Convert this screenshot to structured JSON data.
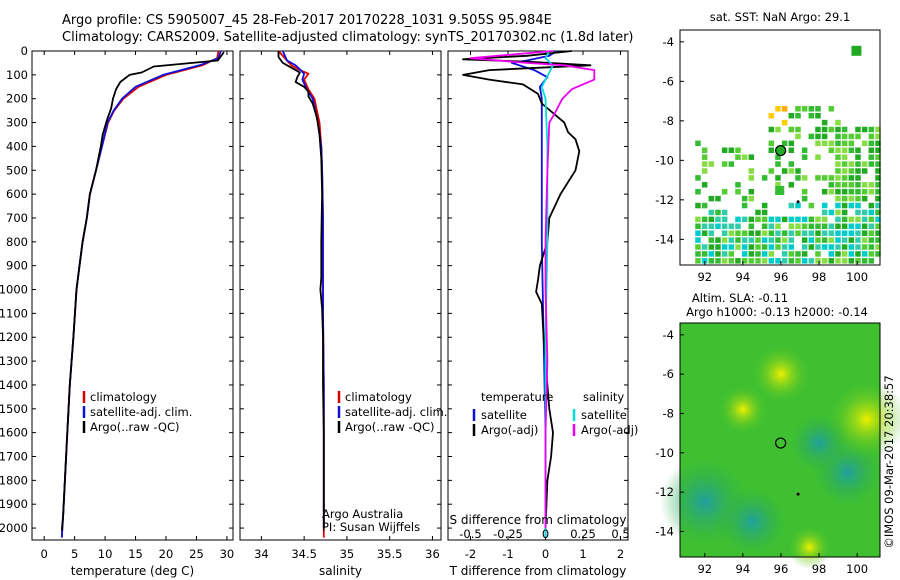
{
  "header": {
    "line1": "Argo profile: CS 5905007_45 28-Feb-2017 20170228_1031 9.505S 95.984E",
    "line2": "Climatology: CARS2009. Satellite-adjusted climatology: synTS_20170302.nc (1.8d later)"
  },
  "colors": {
    "clim": "#dd0000",
    "sat": "#1010dd",
    "argo": "#000000",
    "sat_sal": "#00dddd",
    "argo_sal": "#ee00ee"
  },
  "depth_axis": {
    "ticks": [
      0,
      100,
      200,
      300,
      400,
      500,
      600,
      700,
      800,
      900,
      1000,
      1100,
      1200,
      1300,
      1400,
      1500,
      1600,
      1700,
      1800,
      1900,
      2000
    ]
  },
  "chart_data": [
    {
      "type": "line",
      "name": "temperature",
      "xlabel": "temperature (deg C)",
      "xlim": [
        -2,
        31
      ],
      "ylim": [
        2050,
        0
      ],
      "xticks": [
        0,
        5,
        10,
        15,
        20,
        25,
        30
      ],
      "legend": {
        "items": [
          "climatology",
          "satellite-adj. clim.",
          "Argo(..raw -QC)"
        ]
      },
      "series": [
        {
          "name": "climatology",
          "key": "clim",
          "points": [
            [
              28.6,
              0
            ],
            [
              28.4,
              30
            ],
            [
              26,
              60
            ],
            [
              20,
              100
            ],
            [
              15.5,
              150
            ],
            [
              13,
              200
            ],
            [
              11.5,
              250
            ],
            [
              10.5,
              300
            ],
            [
              9.5,
              400
            ],
            [
              8.5,
              500
            ],
            [
              7.5,
              600
            ],
            [
              7,
              700
            ],
            [
              6.3,
              800
            ],
            [
              5.8,
              900
            ],
            [
              5.3,
              1000
            ],
            [
              4.8,
              1200
            ],
            [
              4.2,
              1400
            ],
            [
              3.8,
              1600
            ],
            [
              3.4,
              1800
            ],
            [
              3.1,
              1950
            ],
            [
              2.9,
              2040
            ]
          ]
        },
        {
          "name": "satellite-adj. clim.",
          "key": "sat",
          "points": [
            [
              29,
              0
            ],
            [
              28.6,
              30
            ],
            [
              25.5,
              60
            ],
            [
              19.5,
              100
            ],
            [
              15,
              150
            ],
            [
              12.8,
              200
            ],
            [
              11.4,
              250
            ],
            [
              10.4,
              300
            ],
            [
              9.5,
              400
            ],
            [
              8.5,
              500
            ],
            [
              7.5,
              600
            ],
            [
              7,
              700
            ],
            [
              6.3,
              800
            ],
            [
              5.8,
              900
            ],
            [
              5.3,
              1000
            ],
            [
              4.8,
              1200
            ],
            [
              4.2,
              1400
            ],
            [
              3.8,
              1600
            ],
            [
              3.4,
              1800
            ],
            [
              3.1,
              1950
            ],
            [
              2.9,
              2040
            ]
          ]
        },
        {
          "name": "Argo(..raw -QC)",
          "key": "argo",
          "points": [
            [
              29.5,
              5
            ],
            [
              28.5,
              40
            ],
            [
              18,
              65
            ],
            [
              16,
              90
            ],
            [
              14,
              100
            ],
            [
              12.5,
              130
            ],
            [
              11.8,
              160
            ],
            [
              11.3,
              200
            ],
            [
              11,
              240
            ],
            [
              10.3,
              290
            ],
            [
              9.6,
              350
            ],
            [
              9.3,
              400
            ],
            [
              8.5,
              500
            ],
            [
              7.5,
              600
            ],
            [
              7,
              700
            ],
            [
              6.3,
              800
            ],
            [
              5.8,
              900
            ],
            [
              5.3,
              1000
            ],
            [
              4.8,
              1200
            ],
            [
              4.2,
              1400
            ],
            [
              3.8,
              1600
            ],
            [
              3.4,
              1800
            ],
            [
              3.1,
              1950
            ],
            [
              2.9,
              2010
            ]
          ]
        }
      ]
    },
    {
      "type": "line",
      "name": "salinity",
      "xlabel": "salinity",
      "xlim": [
        33.75,
        36.1
      ],
      "ylim": [
        2050,
        0
      ],
      "xticks": [
        34,
        34.5,
        35,
        35.5,
        36
      ],
      "legend": {
        "items": [
          "climatology",
          "satellite-adj. clim.",
          "Argo(..raw -QC)"
        ]
      },
      "annotation": {
        "line1": "Argo Australia",
        "line2": "PI: Susan Wijffels"
      },
      "series": [
        {
          "name": "climatology",
          "key": "clim",
          "points": [
            [
              34.2,
              0
            ],
            [
              34.3,
              40
            ],
            [
              34.35,
              60
            ],
            [
              34.45,
              80
            ],
            [
              34.55,
              95
            ],
            [
              34.5,
              120
            ],
            [
              34.55,
              160
            ],
            [
              34.62,
              200
            ],
            [
              34.68,
              300
            ],
            [
              34.7,
              400
            ],
            [
              34.71,
              500
            ],
            [
              34.72,
              700
            ],
            [
              34.72,
              900
            ],
            [
              34.72,
              1100
            ],
            [
              34.73,
              1400
            ],
            [
              34.73,
              2040
            ]
          ]
        },
        {
          "name": "satellite-adj. clim.",
          "key": "sat",
          "points": [
            [
              34.25,
              0
            ],
            [
              34.3,
              40
            ],
            [
              34.4,
              60
            ],
            [
              34.46,
              80
            ],
            [
              34.5,
              95
            ],
            [
              34.48,
              120
            ],
            [
              34.53,
              160
            ],
            [
              34.6,
              200
            ],
            [
              34.66,
              300
            ],
            [
              34.7,
              400
            ],
            [
              34.71,
              500
            ],
            [
              34.72,
              700
            ],
            [
              34.72,
              900
            ],
            [
              34.72,
              1100
            ],
            [
              34.73,
              1400
            ],
            [
              34.73,
              2000
            ]
          ]
        },
        {
          "name": "Argo(..raw -QC)",
          "key": "argo",
          "points": [
            [
              34.2,
              0
            ],
            [
              34.2,
              25
            ],
            [
              34.25,
              50
            ],
            [
              34.35,
              70
            ],
            [
              34.45,
              90
            ],
            [
              34.42,
              110
            ],
            [
              34.4,
              130
            ],
            [
              34.5,
              150
            ],
            [
              34.55,
              170
            ],
            [
              34.55,
              190
            ],
            [
              34.6,
              220
            ],
            [
              34.65,
              280
            ],
            [
              34.68,
              350
            ],
            [
              34.7,
              450
            ],
            [
              34.71,
              600
            ],
            [
              34.7,
              800
            ],
            [
              34.7,
              950
            ],
            [
              34.69,
              1000
            ],
            [
              34.71,
              1080
            ],
            [
              34.72,
              1200
            ],
            [
              34.72,
              1400
            ],
            [
              34.73,
              1600
            ],
            [
              34.73,
              1900
            ],
            [
              34.73,
              2000
            ]
          ]
        }
      ]
    },
    {
      "type": "line",
      "name": "difference",
      "xlabel": "T difference from climatology",
      "xlabel_top": "S difference from climatology",
      "xlim": [
        -2.6,
        2.2
      ],
      "ylim": [
        2050,
        0
      ],
      "xticks": [
        -2,
        -1,
        0,
        1,
        2
      ],
      "s_ticks": [
        "-0.5",
        "-0.25",
        "0",
        "0.25",
        "0.5"
      ],
      "s_tick_pos": [
        -2,
        -1,
        0,
        1,
        2
      ],
      "legend": {
        "temp_title": "temperature",
        "sal_title": "salinity",
        "items": [
          "satellite",
          "Argo(-adj)",
          "satellite",
          "Argo(-adj)"
        ]
      },
      "series": [
        {
          "name": "T satellite",
          "key": "sat",
          "points": [
            [
              0.3,
              0
            ],
            [
              0.1,
              20
            ],
            [
              -0.5,
              40
            ],
            [
              -0.9,
              50
            ],
            [
              -0.3,
              80
            ],
            [
              0.05,
              110
            ],
            [
              -0.15,
              150
            ],
            [
              -0.1,
              200
            ],
            [
              -0.1,
              400
            ],
            [
              -0.1,
              800
            ],
            [
              -0.05,
              1200
            ],
            [
              0,
              1600
            ],
            [
              0,
              2040
            ]
          ]
        },
        {
          "name": "T Argo(-adj)",
          "key": "argo",
          "points": [
            [
              0.7,
              0
            ],
            [
              -0.5,
              20
            ],
            [
              -2.2,
              35
            ],
            [
              -0.5,
              45
            ],
            [
              1.2,
              60
            ],
            [
              -1.5,
              80
            ],
            [
              -2.2,
              100
            ],
            [
              -1.5,
              120
            ],
            [
              -0.6,
              140
            ],
            [
              -0.2,
              180
            ],
            [
              -0.1,
              220
            ],
            [
              0.5,
              300
            ],
            [
              0.6,
              340
            ],
            [
              0.8,
              370
            ],
            [
              0.9,
              420
            ],
            [
              0.8,
              500
            ],
            [
              0.4,
              600
            ],
            [
              0.1,
              700
            ],
            [
              0.05,
              800
            ],
            [
              -0.15,
              900
            ],
            [
              -0.2,
              960
            ],
            [
              -0.25,
              1010
            ],
            [
              -0.1,
              1060
            ],
            [
              -0.05,
              1200
            ],
            [
              0.1,
              1500
            ],
            [
              0.2,
              1600
            ],
            [
              0.15,
              1700
            ],
            [
              0.05,
              1800
            ],
            [
              0,
              2000
            ]
          ]
        },
        {
          "name": "S satellite",
          "key": "sat_sal",
          "points": [
            [
              0.1,
              0
            ],
            [
              0,
              30
            ],
            [
              0.2,
              60
            ],
            [
              0.1,
              90
            ],
            [
              -0.1,
              150
            ],
            [
              0,
              200
            ],
            [
              0.05,
              400
            ],
            [
              0.05,
              800
            ],
            [
              0,
              1200
            ],
            [
              0,
              1600
            ],
            [
              0,
              2040
            ]
          ]
        },
        {
          "name": "S Argo(-adj)",
          "key": "argo_sal",
          "points": [
            [
              0.2,
              0
            ],
            [
              -2.0,
              30
            ],
            [
              -0.5,
              50
            ],
            [
              0.5,
              60
            ],
            [
              1.3,
              80
            ],
            [
              1.3,
              120
            ],
            [
              0.7,
              160
            ],
            [
              0.45,
              200
            ],
            [
              0.25,
              260
            ],
            [
              0.1,
              300
            ],
            [
              0.05,
              500
            ],
            [
              0,
              800
            ],
            [
              0,
              1000
            ],
            [
              0.05,
              1300
            ],
            [
              0,
              1600
            ],
            [
              0,
              2000
            ]
          ]
        }
      ]
    },
    {
      "type": "heatmap",
      "name": "sst-map",
      "title": "sat. SST: NaN Argo: 29.1",
      "xlim": [
        90.7,
        101.2
      ],
      "ylim": [
        -15.3,
        -3.4
      ],
      "xticks": [
        92,
        94,
        96,
        98,
        100
      ],
      "yticks": [
        -4,
        -6,
        -8,
        -10,
        -12,
        -14
      ],
      "argo_marker": [
        95.984,
        -9.505
      ]
    },
    {
      "type": "heatmap",
      "name": "sla-map",
      "title1": "Altim. SLA: -0.11",
      "title2": "Argo h1000: -0.13 h2000: -0.14",
      "xlim": [
        90.7,
        101.2
      ],
      "ylim": [
        -15.3,
        -3.4
      ],
      "xticks": [
        92,
        94,
        96,
        98,
        100
      ],
      "yticks": [
        -4,
        -6,
        -8,
        -10,
        -12,
        -14
      ],
      "argo_marker": [
        95.984,
        -9.505
      ]
    }
  ],
  "footer": {
    "credit": "©IMOS 09-Mar-2017 20:38:57"
  }
}
